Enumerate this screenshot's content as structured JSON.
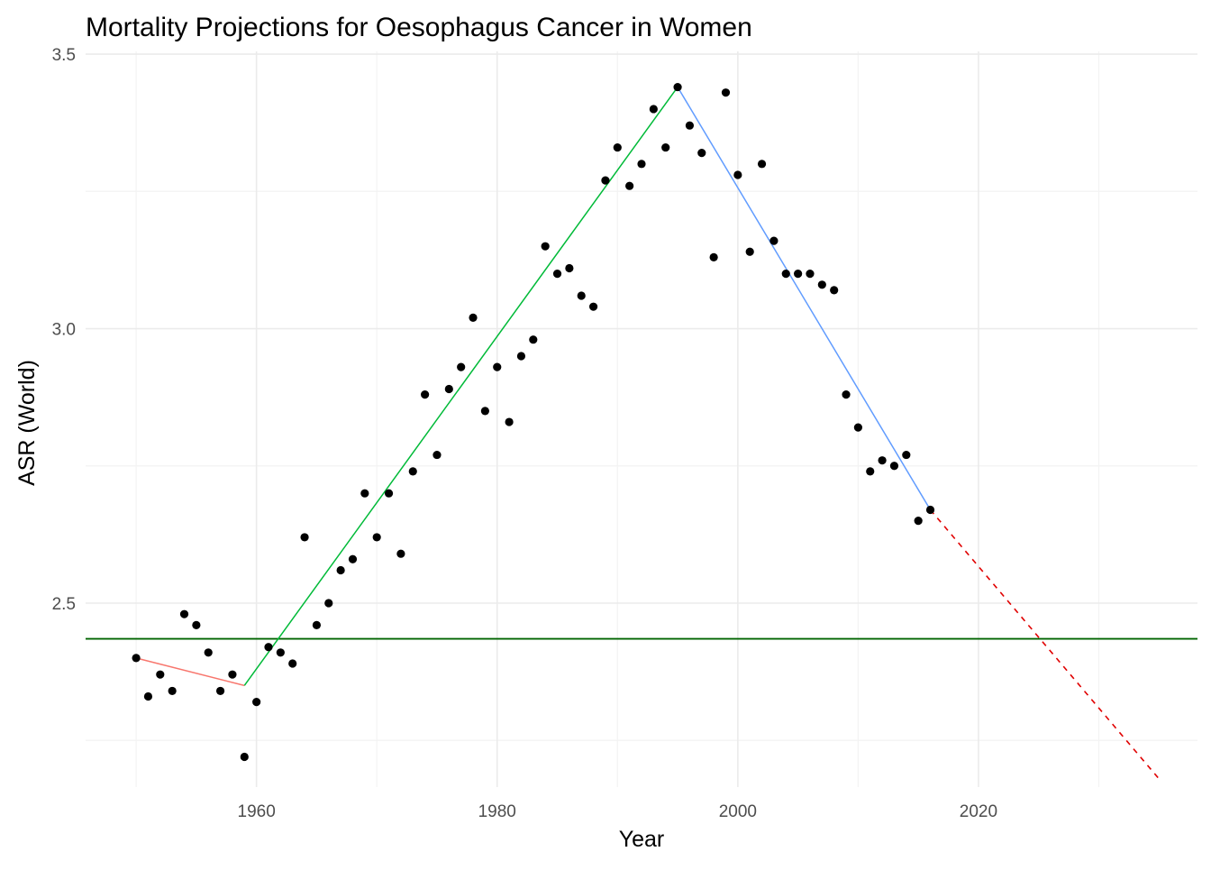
{
  "chart_data": {
    "type": "scatter",
    "title": "Mortality Projections for Oesophagus Cancer in Women",
    "xlabel": "Year",
    "ylabel": "ASR (World)",
    "xlim": [
      1945.8,
      2038.2
    ],
    "ylim": [
      2.165,
      3.505
    ],
    "x_ticks": [
      1960,
      1980,
      2000,
      2020
    ],
    "y_ticks": [
      2.5,
      3.0,
      3.5
    ],
    "y_tick_labels": [
      "2.5",
      "3.0",
      "3.5"
    ],
    "grid": true,
    "legend": "none",
    "points": {
      "color": "#000000",
      "x": [
        1950,
        1951,
        1952,
        1953,
        1954,
        1955,
        1956,
        1957,
        1958,
        1959,
        1960,
        1961,
        1962,
        1963,
        1964,
        1965,
        1966,
        1967,
        1968,
        1969,
        1970,
        1971,
        1972,
        1973,
        1974,
        1975,
        1976,
        1977,
        1978,
        1979,
        1980,
        1981,
        1982,
        1983,
        1984,
        1985,
        1986,
        1987,
        1988,
        1989,
        1990,
        1991,
        1992,
        1993,
        1994,
        1995,
        1996,
        1997,
        1998,
        1999,
        2000,
        2001,
        2002,
        2003,
        2004,
        2005,
        2006,
        2007,
        2008,
        2009,
        2010,
        2011,
        2012,
        2013,
        2014,
        2015,
        2016
      ],
      "y": [
        2.4,
        2.33,
        2.37,
        2.34,
        2.48,
        2.46,
        2.41,
        2.34,
        2.37,
        2.22,
        2.32,
        2.42,
        2.41,
        2.39,
        2.62,
        2.46,
        2.5,
        2.56,
        2.58,
        2.7,
        2.62,
        2.7,
        2.59,
        2.74,
        2.88,
        2.77,
        2.89,
        2.93,
        3.02,
        2.85,
        2.93,
        2.83,
        2.95,
        2.98,
        3.15,
        3.1,
        3.11,
        3.06,
        3.04,
        3.27,
        3.33,
        3.26,
        3.3,
        3.4,
        3.33,
        3.44,
        3.37,
        3.32,
        3.13,
        3.43,
        3.28,
        3.14,
        3.3,
        3.16,
        3.1,
        3.1,
        3.1,
        3.08,
        3.07,
        2.88,
        2.82,
        2.74,
        2.76,
        2.75,
        2.77,
        2.65,
        2.67
      ]
    },
    "segments": [
      {
        "color": "#f8766d",
        "x": [
          1950,
          1959
        ],
        "y": [
          2.4,
          2.35
        ]
      },
      {
        "color": "#00ba38",
        "x": [
          1959,
          1995
        ],
        "y": [
          2.35,
          3.44
        ]
      },
      {
        "color": "#619cff",
        "x": [
          1995,
          2016
        ],
        "y": [
          3.44,
          2.67
        ]
      }
    ],
    "projection": {
      "color": "#e00000",
      "dash": true,
      "x": [
        2016,
        2035
      ],
      "y": [
        2.67,
        2.18
      ]
    },
    "reference_line": {
      "color": "#006400",
      "y": 2.435
    }
  }
}
